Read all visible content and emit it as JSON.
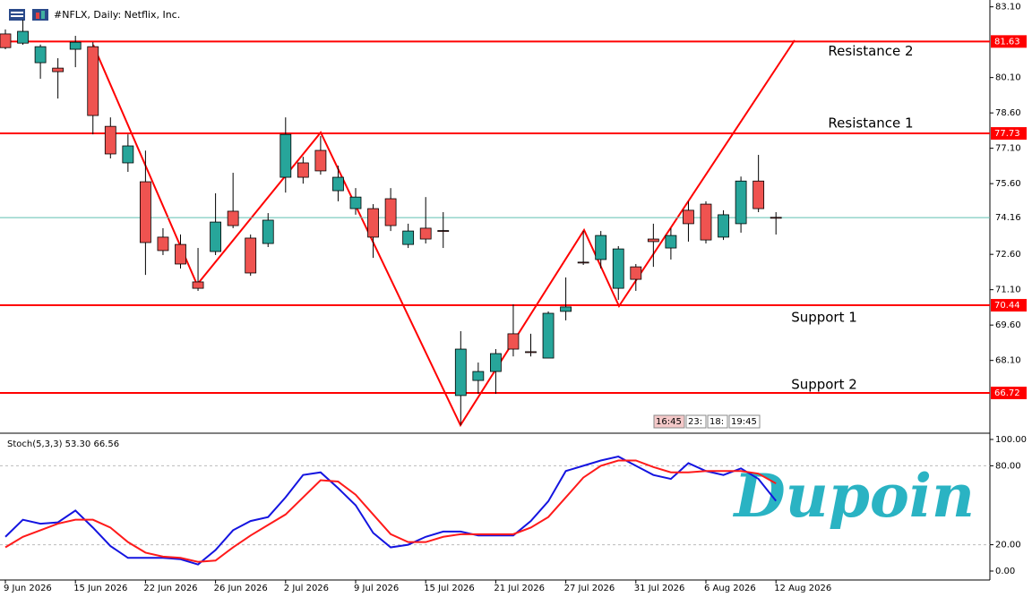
{
  "header": {
    "title": "#NFLX, Daily: Netflix, Inc."
  },
  "watermark": "Dupoin",
  "chart_data": [
    {
      "type": "candlestick",
      "categories": [
        "9 Jun 2026",
        null,
        null,
        null,
        "15 Jun 2026",
        null,
        null,
        null,
        "22 Jun 2026",
        null,
        null,
        null,
        "26 Jun 2026",
        null,
        null,
        null,
        "2 Jul 2026",
        null,
        null,
        null,
        "9 Jul 2026",
        null,
        null,
        null,
        "15 Jul 2026",
        null,
        null,
        null,
        "21 Jul 2026",
        null,
        null,
        null,
        "27 Jul 2026",
        null,
        null,
        null,
        "31 Jul 2026",
        null,
        null,
        null,
        "6 Aug 2026",
        null,
        null,
        null,
        "12 Aug 2026"
      ],
      "open": [
        81.95,
        81.56,
        80.73,
        80.5,
        81.3,
        81.41,
        78.03,
        76.48,
        75.68,
        73.33,
        73.02,
        71.43,
        72.72,
        74.43,
        73.29,
        73.06,
        75.87,
        76.48,
        77.01,
        75.3,
        74.54,
        74.54,
        74.96,
        73.02,
        73.71,
        73.61,
        66.61,
        67.25,
        67.63,
        69.23,
        68.47,
        68.2,
        70.18,
        72.27,
        72.38,
        71.16,
        72.07,
        73.25,
        72.87,
        74.47,
        74.73,
        73.33,
        73.9,
        75.71,
        74.17
      ],
      "high": [
        82.14,
        82.55,
        81.5,
        80.92,
        81.87,
        81.6,
        78.41,
        77.69,
        77.0,
        73.71,
        73.44,
        72.87,
        75.19,
        76.06,
        73.44,
        74.35,
        78.41,
        76.74,
        77.62,
        76.36,
        75.41,
        74.73,
        75.41,
        73.9,
        75.03,
        74.39,
        69.34,
        68.01,
        68.58,
        70.48,
        69.23,
        70.18,
        71.62,
        73.59,
        73.59,
        72.95,
        72.19,
        73.9,
        73.71,
        74.85,
        74.85,
        74.47,
        75.9,
        76.82,
        74.39
      ],
      "low": [
        81.3,
        81.49,
        80.05,
        79.21,
        80.54,
        77.69,
        76.67,
        76.1,
        71.73,
        72.57,
        72.0,
        71.05,
        72.57,
        73.71,
        71.69,
        72.91,
        75.22,
        75.6,
        75.98,
        74.85,
        74.28,
        72.45,
        73.59,
        72.87,
        73.06,
        72.87,
        65.35,
        66.68,
        66.68,
        68.27,
        68.27,
        68.2,
        69.8,
        72.15,
        72.0,
        70.67,
        71.05,
        72.07,
        72.38,
        73.14,
        73.06,
        73.21,
        73.52,
        74.39,
        73.44
      ],
      "close": [
        81.37,
        82.06,
        81.41,
        80.35,
        81.6,
        78.49,
        76.86,
        77.2,
        73.1,
        72.76,
        72.19,
        71.16,
        73.97,
        73.82,
        71.81,
        74.05,
        77.69,
        75.87,
        76.14,
        75.87,
        75.03,
        73.33,
        73.82,
        73.59,
        73.25,
        73.59,
        68.58,
        67.63,
        68.39,
        68.58,
        68.45,
        70.1,
        70.37,
        72.26,
        73.4,
        72.83,
        71.54,
        73.14,
        73.4,
        73.9,
        73.21,
        74.28,
        75.71,
        74.54,
        74.16
      ],
      "up_color": "#27a59a",
      "down_color": "#ef5350",
      "ylim": [
        65.05,
        83.39
      ],
      "yticks": [
        {
          "value": 83.1,
          "label": "83.10"
        },
        {
          "value": 80.1,
          "label": "80.10"
        },
        {
          "value": 78.6,
          "label": "78.60"
        },
        {
          "value": 77.1,
          "label": "77.10"
        },
        {
          "value": 75.6,
          "label": "75.60"
        },
        {
          "value": 72.6,
          "label": "72.60"
        },
        {
          "value": 71.1,
          "label": "71.10"
        },
        {
          "value": 69.6,
          "label": "69.60"
        },
        {
          "value": 68.1,
          "label": "68.10"
        }
      ],
      "levels": [
        81.63,
        77.73,
        70.44,
        66.72
      ],
      "level_names": [
        "Resistance 2",
        "Resistance 1",
        "Support 1",
        "Support 2"
      ],
      "level_color": "#ff0000",
      "current_price": 74.16,
      "current_color": "#5fbfb0",
      "session_labels": [
        "16:45",
        "23:",
        "18:",
        "19:45"
      ]
    },
    {
      "type": "line",
      "title": "Stoch(5,3,3) 53.30 66.56",
      "series": [
        {
          "color": "#1414e0",
          "values": [
            26,
            39,
            36,
            37,
            46,
            33,
            19,
            10,
            10,
            10,
            9,
            5,
            16,
            31,
            38,
            41,
            56,
            73,
            75,
            63,
            50,
            29,
            18,
            20,
            26,
            30,
            30,
            27,
            27,
            27,
            38,
            53,
            76,
            80,
            84,
            87,
            80,
            73,
            70,
            82,
            76,
            73,
            78,
            70,
            53.3
          ]
        },
        {
          "color": "#ff1a1a",
          "values": [
            18,
            26,
            31,
            36,
            39,
            39,
            33,
            22,
            14,
            11,
            10,
            7,
            8,
            18,
            27,
            35,
            43,
            56,
            69,
            68,
            58,
            43,
            28,
            22,
            22,
            26,
            28,
            28,
            28,
            28,
            33,
            41,
            56,
            71,
            80,
            84,
            84,
            79,
            75,
            75,
            76,
            76,
            76,
            74,
            66.56
          ]
        }
      ],
      "ylim": [
        -6.8,
        102.7
      ],
      "yticks": [
        {
          "value": 100,
          "label": "100.00"
        },
        {
          "value": 80,
          "label": "80.00"
        },
        {
          "value": 20,
          "label": "20.00"
        },
        {
          "value": 0,
          "label": "0.00"
        }
      ],
      "levels": [
        80,
        20
      ]
    }
  ]
}
